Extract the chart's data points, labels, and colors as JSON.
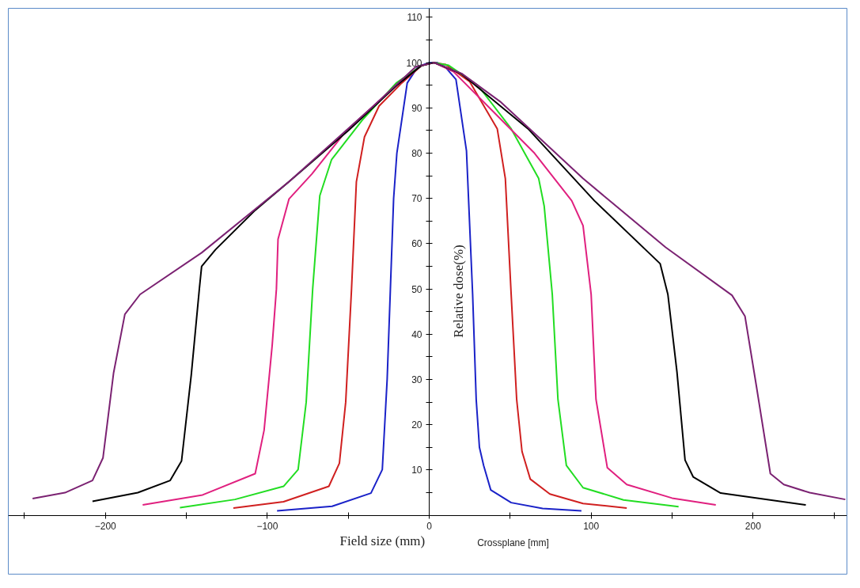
{
  "chart_data": {
    "type": "line",
    "xlabel": "Field size (mm)",
    "ylabel": "Relative dose(%)",
    "annotations": [
      "Crossplane [mm]"
    ],
    "xlim": [
      -260,
      258
    ],
    "ylim": [
      -13,
      112
    ],
    "xticks": [
      {
        "value": -250,
        "label": null
      },
      -200,
      {
        "value": -150,
        "label": null
      },
      -100,
      {
        "value": -50,
        "label": null
      },
      0,
      {
        "value": 50,
        "label": null
      },
      100,
      {
        "value": 150,
        "label": null
      },
      200,
      {
        "value": 250,
        "label": null
      }
    ],
    "yticks": [
      {
        "value": 5,
        "label": null
      },
      10,
      {
        "value": 15,
        "label": null
      },
      20,
      {
        "value": 25,
        "label": null
      },
      30,
      {
        "value": 35,
        "label": null
      },
      40,
      {
        "value": 45,
        "label": null
      },
      50,
      {
        "value": 55,
        "label": null
      },
      60,
      {
        "value": 65,
        "label": null
      },
      70,
      {
        "value": 75,
        "label": null
      },
      80,
      {
        "value": 85,
        "label": null
      },
      90,
      {
        "value": 95,
        "label": null
      },
      100,
      {
        "value": 105,
        "label": null
      },
      110
    ],
    "grid": false,
    "marker": "none",
    "line_style": "solid",
    "series": [
      {
        "color": "#1a22c8",
        "x": [
          -94,
          -60,
          -36,
          -29,
          -26,
          -24,
          -22,
          -20,
          -13.6,
          -7,
          0,
          5,
          10,
          16.5,
          23,
          26.8,
          29,
          31,
          33.6,
          38,
          50.6,
          70,
          94
        ],
        "values": [
          1.0,
          2.0,
          4.9,
          10.1,
          30,
          50,
          70,
          80,
          95.5,
          99.1,
          100,
          100,
          99,
          96.3,
          80.5,
          48.8,
          25.6,
          15,
          11,
          5.6,
          2.8,
          1.5,
          1.0
        ]
      },
      {
        "color": "#d02020",
        "x": [
          -121,
          -90,
          -62,
          -55.5,
          -51.6,
          -48,
          -45,
          -40,
          -31,
          -17,
          -5,
          3,
          10,
          25,
          42,
          47,
          50.6,
          54,
          57.3,
          62.4,
          74.5,
          95,
          122
        ],
        "values": [
          1.6,
          3.0,
          6.4,
          11.5,
          25,
          50,
          73.7,
          83.6,
          90.4,
          95.5,
          99.3,
          100,
          99.6,
          95.8,
          85.4,
          74.4,
          48.8,
          25.6,
          14.1,
          8,
          4.7,
          2.6,
          1.6
        ]
      },
      {
        "color": "#22dd22",
        "x": [
          -154,
          -120,
          -90,
          -81,
          -76,
          -72,
          -67.6,
          -60.3,
          -41.4,
          -20.4,
          -5,
          3,
          12,
          30,
          50.6,
          67.6,
          71,
          76,
          79.5,
          84.7,
          95,
          120,
          154
        ],
        "values": [
          1.7,
          3.5,
          6.4,
          10.1,
          25,
          50,
          70.6,
          78.6,
          87.3,
          95.5,
          99.3,
          100,
          99.4,
          95,
          85.4,
          74.4,
          68.3,
          48.8,
          25.6,
          11,
          6.1,
          3.4,
          1.9
        ]
      },
      {
        "color": "#e0207f",
        "x": [
          -177,
          -140,
          -107.5,
          -102,
          -97,
          -94.4,
          -93.4,
          -86.6,
          -72.5,
          -51.6,
          -25,
          -5,
          3,
          15,
          40,
          65,
          88,
          95,
          100,
          103,
          110,
          122,
          150,
          177
        ],
        "values": [
          2.3,
          4.5,
          9.2,
          18.8,
          37.6,
          50,
          61,
          69.9,
          75.4,
          84.8,
          93.5,
          99.3,
          100,
          98,
          89,
          80,
          69.5,
          64,
          48.8,
          25.6,
          10.5,
          6.8,
          3.8,
          2.3
        ]
      },
      {
        "color": "#000000",
        "x": [
          -208,
          -180,
          -160,
          -153,
          -147,
          -142,
          -140.6,
          -132,
          -107.5,
          -86.6,
          -50,
          -20,
          -5,
          3,
          20,
          61,
          102,
          142.6,
          147.4,
          153,
          158,
          163,
          180,
          232.6
        ],
        "values": [
          3.1,
          5,
          7.7,
          12,
          31,
          50,
          55,
          58.7,
          67.4,
          73.7,
          85,
          95,
          99.3,
          100,
          97.5,
          85.4,
          69.5,
          55.6,
          48.8,
          31.7,
          12.2,
          8.5,
          4.9,
          2.3
        ]
      },
      {
        "color": "#7b2272",
        "x": [
          -245,
          -225,
          -208,
          -201.5,
          -195,
          -188,
          -178.6,
          -140.6,
          -86.6,
          -34.5,
          -8.3,
          3,
          20,
          43.8,
          95,
          146,
          187,
          195,
          202,
          210.7,
          219,
          235,
          257
        ],
        "values": [
          3.7,
          5,
          7.7,
          12.7,
          31.4,
          44.4,
          48.8,
          58,
          73.7,
          90.4,
          99.1,
          100,
          97.6,
          91.4,
          74.4,
          59.2,
          48.6,
          44,
          28.7,
          9.2,
          6.8,
          5,
          3.5
        ]
      }
    ]
  }
}
